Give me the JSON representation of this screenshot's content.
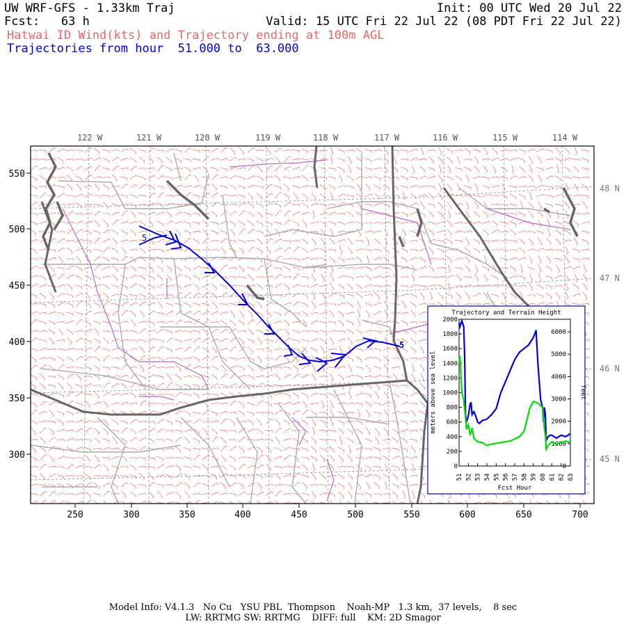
{
  "header": {
    "title": "UW WRF-GFS - 1.33km Traj",
    "init": "Init: 00 UTC Wed 20 Jul 22",
    "fcst": "Fcst:   63 h",
    "valid": "Valid: 15 UTC Fri 22 Jul 22 (08 PDT Fri 22 Jul 22)",
    "subtitle_red": "Hatwai ID Wind(kts) and Trajectory ending at 100m AGL",
    "subtitle_blue": "Trajectories from hour  51.000 to  63.000"
  },
  "map": {
    "x_ticks": [
      "250",
      "300",
      "350",
      "400",
      "450",
      "500",
      "550",
      "600",
      "650",
      "700"
    ],
    "y_ticks": [
      "550",
      "500",
      "450",
      "400",
      "350",
      "300"
    ],
    "lon_labels": [
      "122 W",
      "121 W",
      "120 W",
      "119 W",
      "118 W",
      "117 W",
      "116 W",
      "115 W",
      "114 W"
    ],
    "lat_labels": [
      "48 N",
      "47 N",
      "46 N",
      "45 N"
    ],
    "start_marker": "5",
    "end_marker": "5"
  },
  "inset": {
    "title": "Trajectory and Terrain Height",
    "x_label": "Fcst Hour",
    "y_label_left": "meters above sea level",
    "y_label_right": "feet",
    "x_ticks": [
      "51",
      "52",
      "53",
      "54",
      "55",
      "56",
      "57",
      "58",
      "59",
      "60",
      "61",
      "62",
      "63"
    ],
    "y_ticks_left": [
      "2000",
      "1800",
      "1600",
      "1400",
      "1200",
      "1000",
      "800",
      "600",
      "400",
      "200",
      "0"
    ],
    "y_ticks_right": [
      "6000",
      "5000",
      "4000",
      "3000",
      "2000",
      "1000",
      "0"
    ]
  },
  "chart_data": {
    "type": "line",
    "title": "Trajectory and Terrain Height",
    "xlabel": "Fcst Hour",
    "ylabel": "meters above sea level",
    "xlim": [
      51,
      63
    ],
    "ylim": [
      0,
      2000
    ],
    "series": [
      {
        "color": "#0000dd",
        "x": [
          51,
          51.1,
          51.3,
          51.5,
          51.6,
          51.7,
          51.8,
          52.0,
          52.2,
          52.3,
          52.4,
          52.6,
          52.8,
          53.0,
          53.2,
          53.5,
          54.0,
          54.5,
          55.0,
          55.5,
          56.0,
          56.5,
          57.0,
          57.5,
          58.0,
          58.5,
          59.0,
          59.3,
          59.5,
          59.8,
          60.0,
          60.1,
          60.2,
          60.3,
          60.4,
          60.6,
          60.8,
          61.0,
          61.5,
          62.0,
          62.5,
          63.0
        ],
        "y": [
          1950,
          1900,
          1980,
          1900,
          1500,
          700,
          600,
          680,
          850,
          860,
          700,
          740,
          680,
          600,
          580,
          620,
          640,
          700,
          780,
          1000,
          1150,
          1300,
          1450,
          1550,
          1600,
          1650,
          1750,
          1850,
          1400,
          900,
          800,
          600,
          800,
          700,
          350,
          400,
          420,
          420,
          380,
          420,
          400,
          440
        ]
      },
      {
        "color": "#00dd00",
        "x": [
          51,
          51.1,
          51.3,
          51.5,
          51.7,
          51.8,
          52.0,
          52.2,
          52.4,
          52.6,
          53.0,
          53.5,
          54.0,
          54.5,
          55.0,
          55.5,
          56.0,
          56.5,
          57.0,
          57.5,
          58.0,
          58.3,
          58.6,
          59.0,
          59.5,
          59.8,
          60.0,
          60.2,
          60.3,
          60.4,
          60.6,
          61.0,
          61.5,
          62.0,
          62.5,
          63.0
        ],
        "y": [
          1400,
          1500,
          1000,
          900,
          650,
          500,
          560,
          420,
          520,
          380,
          330,
          320,
          280,
          300,
          310,
          320,
          330,
          340,
          370,
          400,
          470,
          620,
          780,
          880,
          860,
          820,
          800,
          500,
          420,
          230,
          280,
          330,
          300,
          320,
          340,
          320
        ]
      }
    ]
  },
  "footer": {
    "line1": "Model Info: V4.1.3   No Cu   YSU PBL  Thompson    Noah-MP   1.3 km,  37 levels,    8 sec",
    "line2": "LW: RRTMG SW: RRTMG    DIFF: full    KM: 2D Smagor"
  },
  "colors": {
    "barbs": "#ee6666",
    "trajectory": "#0000dd",
    "terrain": "#00dd00",
    "state_border": "#666666",
    "county_border": "#aaaaaa",
    "river": "#bb66cc"
  }
}
